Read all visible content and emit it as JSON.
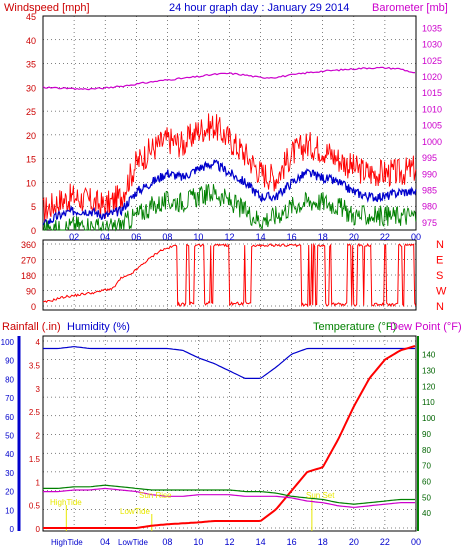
{
  "colors": {
    "frame": "#000000",
    "red": "#ff0000",
    "darkred": "#cc0000",
    "magenta": "#cc00cc",
    "blue": "#0000cc",
    "green": "#008000",
    "darkgreen": "#006400",
    "yellow": "#e8e800",
    "grid": "#000000"
  },
  "header": {
    "left_title": "Windspeed [mph]",
    "center_title": "24 hour graph day : January 29 2014",
    "right_title": "Barometer [mb]"
  },
  "lower_header": {
    "rainfall": "Rainfall (.in)",
    "humidity": "Humidity (%)",
    "temperature": "Temperature (°F)",
    "dewpoint": "Dew Point (°F)"
  },
  "annotations": {
    "high_title": "HighTide",
    "low_title": "LowTide",
    "sunrise": "Sun Rise",
    "sunset": "Sun Set",
    "bottom_high": "HighTide",
    "bottom_low": "LowTide"
  },
  "chart_data": [
    {
      "type": "line",
      "panel": "wind_barometer",
      "x_hours": [
        0,
        1,
        2,
        3,
        4,
        5,
        6,
        7,
        8,
        9,
        10,
        11,
        12,
        13,
        14,
        15,
        16,
        17,
        18,
        19,
        20,
        21,
        22,
        23,
        24
      ],
      "x_tick_labels": [
        "02",
        "04",
        "06",
        "08",
        "10",
        "12",
        "14",
        "16",
        "18",
        "20",
        "22",
        "00"
      ],
      "y_left_ticks": [
        0,
        5,
        10,
        15,
        20,
        25,
        30,
        35,
        40,
        45
      ],
      "y_left_range": [
        0,
        45
      ],
      "y_right_ticks": [
        975,
        980,
        985,
        990,
        995,
        1000,
        1005,
        1010,
        1015,
        1020,
        1025,
        1030,
        1035
      ],
      "y_right_range": [
        972.5,
        1038.5
      ],
      "series": [
        {
          "key": "gust",
          "color": "red",
          "axis": "left",
          "values": [
            4,
            6,
            7,
            6,
            5,
            7,
            14,
            17,
            19,
            18,
            21,
            22,
            19,
            16,
            12,
            11,
            16,
            18,
            17,
            15,
            13,
            12,
            12,
            12,
            13
          ]
        },
        {
          "key": "avg",
          "color": "blue",
          "axis": "left",
          "values": [
            1,
            3,
            4,
            4,
            3,
            4,
            8,
            10,
            12,
            11,
            13,
            14,
            12,
            10,
            7,
            7,
            10,
            12,
            11,
            10,
            8,
            7,
            7,
            8,
            8
          ]
        },
        {
          "key": "low",
          "color": "green",
          "axis": "left",
          "values": [
            0,
            0,
            1,
            1,
            0,
            1,
            3,
            5,
            6,
            6,
            7,
            8,
            6,
            4,
            2,
            3,
            5,
            6,
            6,
            5,
            3,
            3,
            3,
            3,
            3
          ]
        },
        {
          "key": "barometer",
          "color": "magenta",
          "axis": "right",
          "values": [
            1016.5,
            1016.3,
            1016,
            1016,
            1016.3,
            1016.8,
            1017.5,
            1018.2,
            1018.8,
            1019.3,
            1019.8,
            1020.5,
            1020.8,
            1020.3,
            1019.5,
            1019.6,
            1020.3,
            1021,
            1021.5,
            1021.8,
            1022.2,
            1022.5,
            1022.5,
            1022.2,
            1020.8
          ]
        }
      ]
    },
    {
      "type": "line",
      "panel": "wind_direction",
      "y_left_ticks": [
        0,
        90,
        180,
        270,
        360
      ],
      "y_right_labels": [
        "N",
        "W",
        "S",
        "E",
        "N"
      ],
      "y_range": [
        0,
        360
      ],
      "direction_samples": [
        [
          0,
          20
        ],
        [
          0.5,
          30
        ],
        [
          1,
          45
        ],
        [
          1.5,
          55
        ],
        [
          2,
          60
        ],
        [
          2.5,
          68
        ],
        [
          3,
          75
        ],
        [
          3.5,
          80
        ],
        [
          4,
          95
        ],
        [
          4.5,
          100
        ],
        [
          5,
          160
        ],
        [
          5.5,
          175
        ],
        [
          6,
          210
        ],
        [
          6.5,
          250
        ],
        [
          7,
          285
        ],
        [
          7.5,
          320
        ],
        [
          8,
          335
        ],
        [
          8.5,
          350
        ]
      ]
    },
    {
      "type": "line",
      "panel": "rain_humidity_temp",
      "y_left_ticks": [
        0,
        10,
        20,
        30,
        40,
        50,
        60,
        70,
        80,
        90,
        100
      ],
      "y_rain_ticks": [
        0,
        0.5,
        1,
        1.5,
        2,
        2.5,
        3,
        3.5,
        4
      ],
      "y_right_ticks": [
        40,
        50,
        60,
        70,
        80,
        90,
        100,
        110,
        120,
        130,
        140
      ],
      "y_right_range": [
        30,
        148
      ],
      "series": [
        {
          "key": "humidity",
          "color": "blue",
          "axis": "humidity",
          "values": [
            96,
            96,
            97,
            96,
            96,
            96,
            96,
            96,
            96,
            95,
            91,
            88,
            84,
            80,
            80,
            86,
            93,
            96,
            96,
            96,
            96,
            96,
            96,
            96,
            96
          ]
        },
        {
          "key": "rainfall",
          "color": "red",
          "axis": "rain",
          "values": [
            0,
            0,
            0,
            0,
            0,
            0,
            0,
            0.05,
            0.08,
            0.1,
            0.12,
            0.15,
            0.15,
            0.15,
            0.15,
            0.4,
            0.8,
            1.2,
            1.3,
            1.9,
            2.6,
            3.2,
            3.6,
            3.8,
            3.9
          ]
        },
        {
          "key": "temperature",
          "color": "green",
          "axis": "temp",
          "values": [
            55,
            55,
            56,
            56,
            57,
            56,
            55,
            54,
            54,
            54,
            54,
            54,
            54,
            53,
            53,
            52,
            50,
            49,
            48,
            46,
            45,
            46,
            47,
            48,
            48
          ]
        },
        {
          "key": "dewpoint",
          "color": "magenta",
          "axis": "temp",
          "values": [
            53,
            53,
            54,
            54,
            55,
            54,
            53,
            51,
            50,
            50,
            51,
            51,
            51,
            50,
            50,
            50,
            49,
            47,
            46,
            44,
            43,
            44,
            45,
            46,
            46
          ]
        }
      ]
    }
  ]
}
